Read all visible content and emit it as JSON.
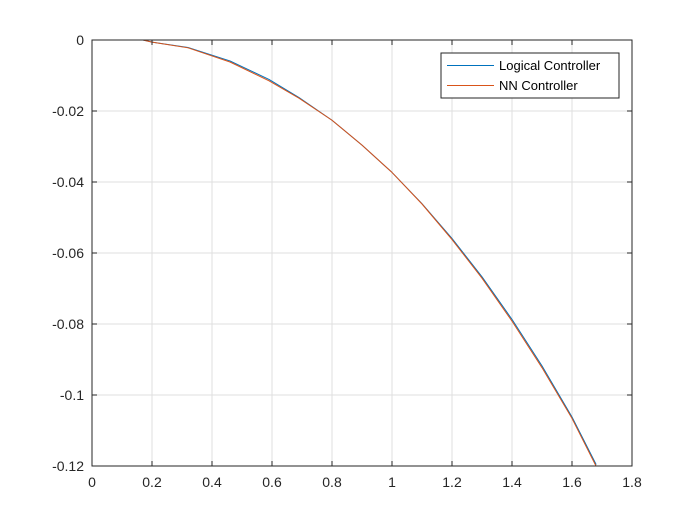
{
  "chart_data": {
    "type": "line",
    "title": "",
    "xlabel": "",
    "ylabel": "",
    "xlim": [
      0,
      1.8
    ],
    "ylim": [
      -0.12,
      0
    ],
    "xticks": [
      0,
      0.2,
      0.4,
      0.6,
      0.8,
      1,
      1.2,
      1.4,
      1.6,
      1.8
    ],
    "xtick_labels": [
      "0",
      "0.2",
      "0.4",
      "0.6",
      "0.8",
      "1",
      "1.2",
      "1.4",
      "1.6",
      "1.8"
    ],
    "yticks": [
      0,
      -0.02,
      -0.04,
      -0.06,
      -0.08,
      -0.1,
      -0.12
    ],
    "ytick_labels": [
      "0",
      "-0.02",
      "-0.04",
      "-0.06",
      "-0.08",
      "-0.1",
      "-0.12"
    ],
    "grid": true,
    "legend_position": "top-right",
    "series": [
      {
        "name": "Logical Controller",
        "color": "#0072BD",
        "x": [
          0,
          0.17,
          0.2,
          0.32,
          0.46,
          0.59,
          0.69,
          0.8,
          0.9,
          1.0,
          1.1,
          1.2,
          1.3,
          1.4,
          1.5,
          1.6,
          1.68
        ],
        "y": [
          0,
          0,
          -0.0006,
          -0.0021,
          -0.0059,
          -0.0111,
          -0.0162,
          -0.0226,
          -0.0296,
          -0.0373,
          -0.0461,
          -0.0559,
          -0.0667,
          -0.0787,
          -0.0918,
          -0.1062,
          -0.1195
        ]
      },
      {
        "name": "NN Controller",
        "color": "#D95319",
        "x": [
          0,
          0.17,
          0.2,
          0.32,
          0.46,
          0.59,
          0.69,
          0.8,
          0.9,
          1.0,
          1.1,
          1.2,
          1.3,
          1.4,
          1.5,
          1.6,
          1.68
        ],
        "y": [
          0,
          0,
          -0.0006,
          -0.0022,
          -0.0062,
          -0.0115,
          -0.0164,
          -0.0226,
          -0.0296,
          -0.0373,
          -0.0462,
          -0.0562,
          -0.0671,
          -0.0792,
          -0.0923,
          -0.1066,
          -0.12
        ]
      }
    ]
  }
}
